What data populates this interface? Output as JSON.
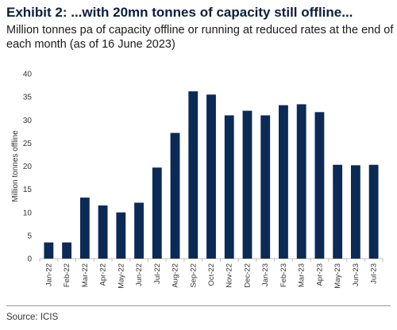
{
  "title": "Exhibit 2: ...with 20mn tonnes of capacity still offline...",
  "subtitle": "Million tonnes pa of capacity offline or running at reduced rates at the end of each month (as of 16 June 2023)",
  "source": "Source: ICIS",
  "colors": {
    "bar": "#0b2a55",
    "axis": "#bfbfbf",
    "text": "#333333"
  },
  "chart_data": {
    "type": "bar",
    "categories": [
      "Jan-22",
      "Feb-22",
      "Mar-22",
      "Apr-22",
      "May-22",
      "Jun-22",
      "Jul-22",
      "Aug-22",
      "Sep-22",
      "Oct-22",
      "Nov-22",
      "Dec-22",
      "Jan-23",
      "Feb-23",
      "Mar-23",
      "Apr-23",
      "May-23",
      "Jun-23",
      "Jul-23"
    ],
    "values": [
      3.5,
      3.5,
      13.2,
      11.5,
      10.0,
      12.1,
      19.7,
      27.2,
      36.2,
      35.5,
      31.0,
      32.0,
      31.0,
      33.2,
      33.4,
      31.7,
      20.3,
      20.2,
      20.3
    ],
    "xlabel": "",
    "ylabel": "Million tonnes offline",
    "ylim": [
      0,
      40
    ],
    "yticks": [
      0,
      5,
      10,
      15,
      20,
      25,
      30,
      35,
      40
    ],
    "grid": false,
    "legend": "none"
  }
}
